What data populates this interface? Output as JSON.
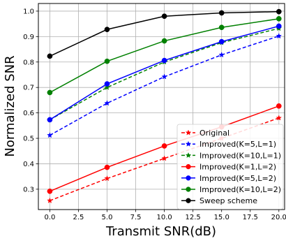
{
  "chart_data": {
    "type": "line",
    "title": "",
    "xlabel": "Transmit SNR(dB)",
    "ylabel": "Normalized SNR",
    "xlim": [
      -1,
      20.5
    ],
    "ylim": [
      0.22,
      1.03
    ],
    "xticks": [
      "0.0",
      "2.5",
      "5.0",
      "7.5",
      "10.0",
      "12.5",
      "15.0",
      "17.5",
      "20.0"
    ],
    "yticks": [
      "0.3",
      "0.4",
      "0.5",
      "0.6",
      "0.7",
      "0.8",
      "0.9",
      "1.0"
    ],
    "grid": true,
    "legend_position": "lower-right",
    "x": [
      0,
      5,
      10,
      15,
      20
    ],
    "series": [
      {
        "name": "Original",
        "color": "#ff0000",
        "style": "dashed",
        "marker": "star",
        "values": [
          0.255,
          0.342,
          0.421,
          0.5,
          0.58
        ]
      },
      {
        "name": "Improved(K=5,L=1)",
        "color": "#0000ff",
        "style": "dashed",
        "marker": "star",
        "values": [
          0.512,
          0.638,
          0.742,
          0.828,
          0.902
        ]
      },
      {
        "name": "Improved(K=10,L=1)",
        "color": "#008000",
        "style": "dashed",
        "marker": "star",
        "values": [
          0.573,
          0.7,
          0.8,
          0.876,
          0.932
        ]
      },
      {
        "name": "Improved(K=1,L=2)",
        "color": "#ff0000",
        "style": "solid",
        "marker": "circle",
        "values": [
          0.292,
          0.386,
          0.47,
          0.545,
          0.627
        ]
      },
      {
        "name": "Improved(K=5,L=2)",
        "color": "#0000ff",
        "style": "solid",
        "marker": "circle",
        "values": [
          0.573,
          0.714,
          0.806,
          0.88,
          0.941
        ]
      },
      {
        "name": "Improved(K=10,L=2)",
        "color": "#008000",
        "style": "solid",
        "marker": "circle",
        "values": [
          0.68,
          0.803,
          0.883,
          0.936,
          0.97
        ]
      },
      {
        "name": "Sweep scheme",
        "color": "#000000",
        "style": "solid",
        "marker": "circle",
        "values": [
          0.823,
          0.928,
          0.98,
          0.993,
          0.998
        ]
      }
    ]
  }
}
